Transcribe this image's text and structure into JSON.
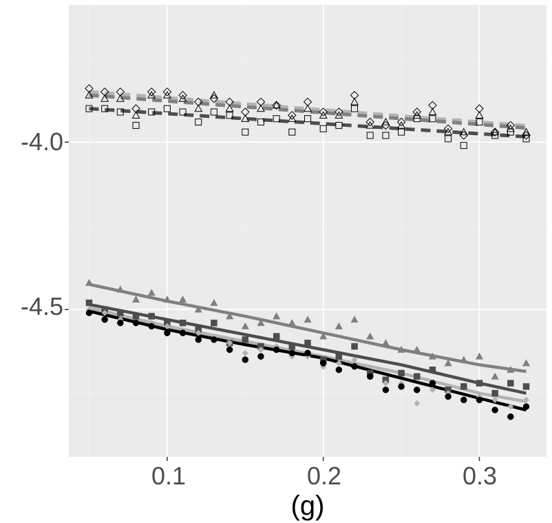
{
  "chart_data": {
    "type": "scatter",
    "xlabel": "(g)",
    "ylabel": "",
    "xlim": [
      0.037,
      0.343
    ],
    "ylim": [
      -4.94,
      -3.59
    ],
    "x_ticks": [
      0.1,
      0.2,
      0.3
    ],
    "x_tick_labels": [
      "0.1",
      "0.2",
      "0.3"
    ],
    "y_ticks": [
      -4.5,
      -4.0
    ],
    "y_tick_labels": [
      "-4.5",
      "-4.0"
    ],
    "grid": true,
    "legend": "none",
    "colors": {
      "panel_bg": "#ebebeb",
      "grid_major": "#ffffff",
      "grid_minor": "#f2f2f2",
      "series_1": "#808080",
      "series_2": "#4d4d4d",
      "series_3": "#b3b3b3",
      "series_4": "#000000"
    },
    "series": [
      {
        "group": "upper",
        "shape": "diamond-open",
        "color": "#b3b3b3",
        "trend": "dashed",
        "x": [
          0.05,
          0.06,
          0.07,
          0.08,
          0.09,
          0.1,
          0.11,
          0.12,
          0.13,
          0.14,
          0.15,
          0.16,
          0.17,
          0.18,
          0.19,
          0.2,
          0.21,
          0.22,
          0.23,
          0.24,
          0.25,
          0.26,
          0.27,
          0.28,
          0.29,
          0.3,
          0.31,
          0.32,
          0.33
        ],
        "y": [
          -3.84,
          -3.85,
          -3.85,
          -3.9,
          -3.85,
          -3.85,
          -3.86,
          -3.88,
          -3.87,
          -3.88,
          -3.91,
          -3.88,
          -3.89,
          -3.92,
          -3.88,
          -3.91,
          -3.91,
          -3.86,
          -3.94,
          -3.95,
          -3.94,
          -3.91,
          -3.89,
          -3.96,
          -3.98,
          -3.9,
          -3.97,
          -3.95,
          -3.98
        ],
        "trend_y": [
          -3.85,
          -3.853,
          -3.857,
          -3.86,
          -3.864,
          -3.868,
          -3.871,
          -3.875,
          -3.879,
          -3.882,
          -3.886,
          -3.889,
          -3.893,
          -3.897,
          -3.9,
          -3.904,
          -3.907,
          -3.911,
          -3.915,
          -3.918,
          -3.922,
          -3.926,
          -3.929,
          -3.933,
          -3.936,
          -3.94,
          -3.944,
          -3.947,
          -3.951
        ]
      },
      {
        "group": "upper",
        "shape": "triangle-open",
        "color": "#808080",
        "trend": "dashed",
        "x": [
          0.05,
          0.06,
          0.07,
          0.08,
          0.09,
          0.1,
          0.11,
          0.12,
          0.13,
          0.14,
          0.15,
          0.16,
          0.17,
          0.18,
          0.19,
          0.2,
          0.21,
          0.22,
          0.23,
          0.24,
          0.25,
          0.26,
          0.27,
          0.28,
          0.29,
          0.3,
          0.31,
          0.32,
          0.33
        ],
        "y": [
          -3.86,
          -3.87,
          -3.87,
          -3.92,
          -3.86,
          -3.86,
          -3.87,
          -3.9,
          -3.86,
          -3.9,
          -3.93,
          -3.9,
          -3.89,
          -3.93,
          -3.9,
          -3.92,
          -3.92,
          -3.88,
          -3.95,
          -3.94,
          -3.95,
          -3.92,
          -3.91,
          -3.97,
          -3.97,
          -3.92,
          -3.97,
          -3.96,
          -3.97
        ],
        "trend_y": [
          -3.86,
          -3.863,
          -3.867,
          -3.87,
          -3.874,
          -3.877,
          -3.881,
          -3.884,
          -3.888,
          -3.891,
          -3.895,
          -3.898,
          -3.902,
          -3.905,
          -3.909,
          -3.912,
          -3.916,
          -3.919,
          -3.923,
          -3.926,
          -3.93,
          -3.933,
          -3.937,
          -3.94,
          -3.944,
          -3.947,
          -3.951,
          -3.954,
          -3.958
        ]
      },
      {
        "group": "upper",
        "shape": "square-open",
        "color": "#4d4d4d",
        "trend": "dashed",
        "x": [
          0.05,
          0.06,
          0.07,
          0.08,
          0.09,
          0.1,
          0.11,
          0.12,
          0.13,
          0.14,
          0.15,
          0.16,
          0.17,
          0.18,
          0.19,
          0.2,
          0.21,
          0.22,
          0.23,
          0.24,
          0.25,
          0.26,
          0.27,
          0.28,
          0.29,
          0.3,
          0.31,
          0.32,
          0.33
        ],
        "y": [
          -3.9,
          -3.9,
          -3.91,
          -3.95,
          -3.91,
          -3.9,
          -3.91,
          -3.94,
          -3.91,
          -3.92,
          -3.97,
          -3.94,
          -3.93,
          -3.97,
          -3.93,
          -3.96,
          -3.95,
          -3.9,
          -3.98,
          -3.98,
          -3.97,
          -3.93,
          -3.93,
          -3.99,
          -4.01,
          -3.94,
          -3.98,
          -3.97,
          -3.99
        ],
        "trend_y": [
          -3.9,
          -3.903,
          -3.906,
          -3.909,
          -3.912,
          -3.915,
          -3.918,
          -3.921,
          -3.924,
          -3.927,
          -3.93,
          -3.933,
          -3.936,
          -3.939,
          -3.942,
          -3.945,
          -3.948,
          -3.951,
          -3.954,
          -3.957,
          -3.96,
          -3.963,
          -3.966,
          -3.969,
          -3.972,
          -3.975,
          -3.978,
          -3.981,
          -3.984
        ]
      },
      {
        "group": "lower",
        "shape": "triangle",
        "color": "#808080",
        "trend": "solid",
        "x": [
          0.05,
          0.07,
          0.08,
          0.09,
          0.1,
          0.11,
          0.12,
          0.13,
          0.14,
          0.15,
          0.16,
          0.17,
          0.18,
          0.19,
          0.2,
          0.21,
          0.22,
          0.23,
          0.24,
          0.25,
          0.26,
          0.27,
          0.28,
          0.29,
          0.3,
          0.31,
          0.32,
          0.33
        ],
        "y": [
          -4.42,
          -4.44,
          -4.47,
          -4.45,
          -4.47,
          -4.47,
          -4.5,
          -4.48,
          -4.52,
          -4.55,
          -4.54,
          -4.52,
          -4.54,
          -4.53,
          -4.58,
          -4.55,
          -4.53,
          -4.58,
          -4.6,
          -4.62,
          -4.62,
          -4.64,
          -4.66,
          -4.65,
          -4.64,
          -4.7,
          -4.68,
          -4.66
        ],
        "trend_x": [
          0.05,
          0.1,
          0.15,
          0.2,
          0.25,
          0.3,
          0.33
        ],
        "trend_y": [
          -4.425,
          -4.475,
          -4.52,
          -4.57,
          -4.62,
          -4.665,
          -4.685
        ]
      },
      {
        "group": "lower",
        "shape": "square",
        "color": "#4d4d4d",
        "trend": "solid",
        "x": [
          0.05,
          0.06,
          0.07,
          0.08,
          0.09,
          0.1,
          0.11,
          0.12,
          0.13,
          0.14,
          0.15,
          0.16,
          0.17,
          0.18,
          0.19,
          0.2,
          0.21,
          0.22,
          0.23,
          0.24,
          0.25,
          0.26,
          0.27,
          0.28,
          0.29,
          0.3,
          0.31,
          0.32,
          0.33
        ],
        "y": [
          -4.48,
          -4.5,
          -4.51,
          -4.52,
          -4.52,
          -4.54,
          -4.54,
          -4.56,
          -4.54,
          -4.6,
          -4.59,
          -4.61,
          -4.58,
          -4.61,
          -4.6,
          -4.65,
          -4.64,
          -4.61,
          -4.69,
          -4.71,
          -4.69,
          -4.7,
          -4.68,
          -4.74,
          -4.73,
          -4.72,
          -4.75,
          -4.72,
          -4.73
        ],
        "trend_x": [
          0.05,
          0.1,
          0.15,
          0.2,
          0.25,
          0.3,
          0.33
        ],
        "trend_y": [
          -4.485,
          -4.53,
          -4.575,
          -4.62,
          -4.665,
          -4.72,
          -4.75
        ]
      },
      {
        "group": "lower",
        "shape": "diamond",
        "color": "#b3b3b3",
        "trend": "solid",
        "x": [
          0.05,
          0.06,
          0.07,
          0.08,
          0.09,
          0.1,
          0.11,
          0.12,
          0.13,
          0.14,
          0.15,
          0.16,
          0.17,
          0.18,
          0.19,
          0.2,
          0.21,
          0.22,
          0.23,
          0.24,
          0.25,
          0.26,
          0.27,
          0.28,
          0.29,
          0.3,
          0.31,
          0.32,
          0.33
        ],
        "y": [
          -4.5,
          -4.51,
          -4.53,
          -4.54,
          -4.54,
          -4.55,
          -4.57,
          -4.57,
          -4.59,
          -4.6,
          -4.63,
          -4.62,
          -4.61,
          -4.64,
          -4.64,
          -4.67,
          -4.66,
          -4.65,
          -4.7,
          -4.72,
          -4.72,
          -4.78,
          -4.74,
          -4.75,
          -4.77,
          -4.76,
          -4.77,
          -4.79,
          -4.77
        ],
        "trend_x": [
          0.05,
          0.1,
          0.15,
          0.2,
          0.25,
          0.3,
          0.33
        ],
        "trend_y": [
          -4.495,
          -4.55,
          -4.595,
          -4.64,
          -4.69,
          -4.75,
          -4.775
        ]
      },
      {
        "group": "lower",
        "shape": "circle",
        "color": "#000000",
        "trend": "solid",
        "x": [
          0.05,
          0.06,
          0.07,
          0.08,
          0.09,
          0.1,
          0.11,
          0.12,
          0.13,
          0.14,
          0.15,
          0.16,
          0.17,
          0.18,
          0.19,
          0.2,
          0.21,
          0.22,
          0.23,
          0.24,
          0.25,
          0.26,
          0.27,
          0.28,
          0.29,
          0.3,
          0.31,
          0.32,
          0.33
        ],
        "y": [
          -4.51,
          -4.53,
          -4.54,
          -4.54,
          -4.55,
          -4.57,
          -4.57,
          -4.59,
          -4.59,
          -4.62,
          -4.65,
          -4.64,
          -4.62,
          -4.63,
          -4.63,
          -4.66,
          -4.68,
          -4.67,
          -4.7,
          -4.74,
          -4.73,
          -4.74,
          -4.72,
          -4.76,
          -4.77,
          -4.77,
          -4.8,
          -4.82,
          -4.79
        ],
        "trend_x": [
          0.05,
          0.1,
          0.15,
          0.2,
          0.25,
          0.3,
          0.33
        ],
        "trend_y": [
          -4.505,
          -4.56,
          -4.605,
          -4.645,
          -4.705,
          -4.765,
          -4.8
        ]
      }
    ]
  }
}
